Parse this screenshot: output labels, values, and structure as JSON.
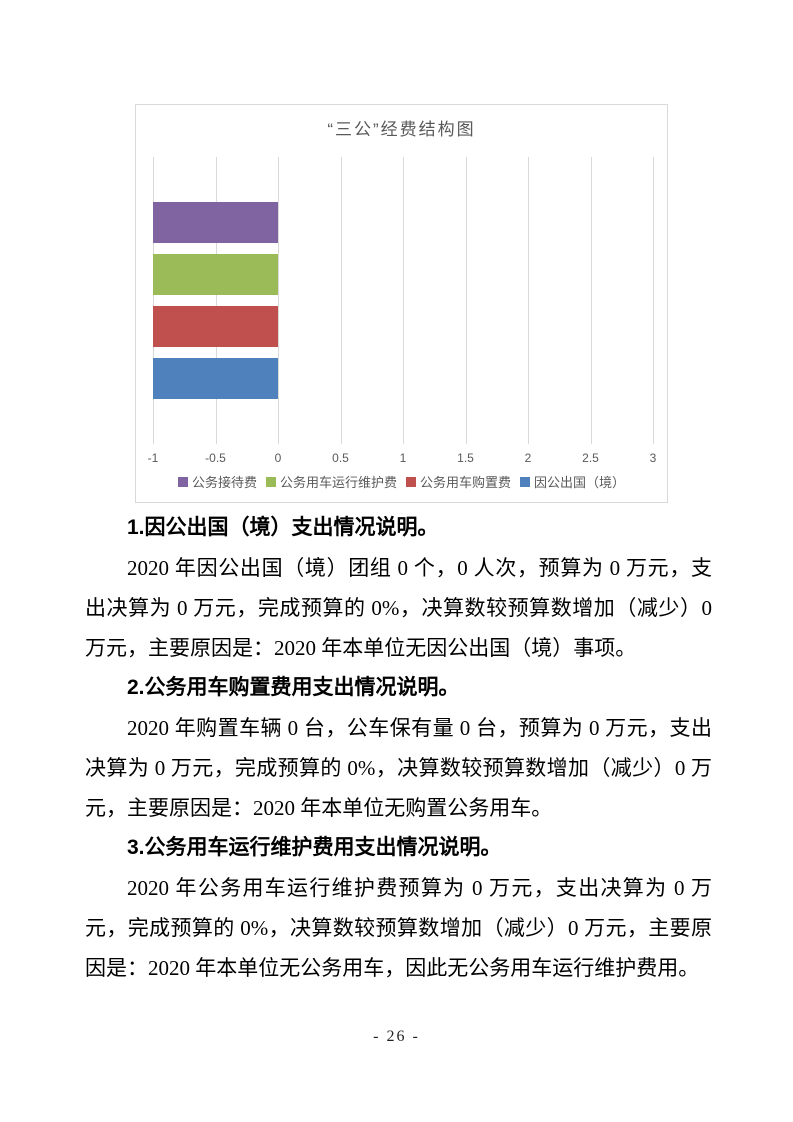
{
  "chart": {
    "title": "“三公”经费结构图",
    "title_color": "#595959",
    "frame_border_color": "#d9d9d9",
    "gridline_color": "#d9d9d9",
    "axis_label_color": "#595959"
  },
  "chart_data": {
    "type": "bar",
    "orientation": "horizontal",
    "title": "“三公”经费结构图",
    "categories": [
      "公务接待费",
      "公务用车运行维护费",
      "公务用车购置费",
      "因公出国（境）"
    ],
    "series": [
      {
        "name": "公务接待费",
        "color": "#8064A2",
        "bar_from": -1,
        "bar_to": 0
      },
      {
        "name": "公务用车运行维护费",
        "color": "#9BBB59",
        "bar_from": -1,
        "bar_to": 0
      },
      {
        "name": "公务用车购置费",
        "color": "#C0504D",
        "bar_from": -1,
        "bar_to": 0
      },
      {
        "name": "因公出国（境）",
        "color": "#4F81BD",
        "bar_from": -1,
        "bar_to": 0
      }
    ],
    "xlim": [
      -1,
      3
    ],
    "xticks": [
      -1,
      -0.5,
      0,
      0.5,
      1,
      1.5,
      2,
      2.5,
      3
    ],
    "grid": true,
    "legend_position": "bottom"
  },
  "sections": [
    {
      "heading": "1.因公出国（境）支出情况说明。",
      "body": "2020 年因公出国（境）团组 0 个，0 人次，预算为 0 万元，支出决算为 0 万元，完成预算的 0%，决算数较预算数增加（减少）0 万元，主要原因是：2020 年本单位无因公出国（境）事项。"
    },
    {
      "heading": "2.公务用车购置费用支出情况说明。",
      "body": "2020 年购置车辆 0 台，公车保有量 0 台，预算为 0 万元，支出决算为 0 万元，完成预算的 0%，决算数较预算数增加（减少）0 万元，主要原因是：2020 年本单位无购置公务用车。"
    },
    {
      "heading": "3.公务用车运行维护费用支出情况说明。",
      "body": "2020 年公务用车运行维护费预算为 0 万元，支出决算为 0 万元，完成预算的 0%，决算数较预算数增加（减少）0 万元，主要原因是：2020 年本单位无公务用车，因此无公务用车运行维护费用。"
    }
  ],
  "page": {
    "number_label": "- 26 -"
  }
}
